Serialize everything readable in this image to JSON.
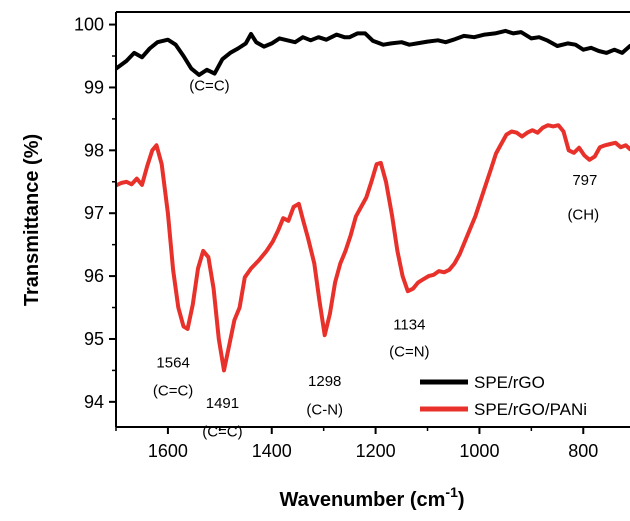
{
  "chart_data": {
    "type": "line",
    "title": "",
    "xlabel": "Wavenumber (cm",
    "xlabel_sup": "-1",
    "xlabel_close": ")",
    "ylabel": "Transmittance (%)",
    "xlim": [
      1700,
      710
    ],
    "ylim": [
      93.6,
      100.2
    ],
    "x_reversed": true,
    "xticks": [
      1600,
      1400,
      1200,
      1000,
      800
    ],
    "yticks": [
      94,
      95,
      96,
      97,
      98,
      99,
      100
    ],
    "grid": false,
    "legend_position": "bottom-right",
    "series": [
      {
        "name": "SPE/rGO",
        "color": "#000000",
        "points": [
          [
            1700,
            99.3
          ],
          [
            1680,
            99.42
          ],
          [
            1665,
            99.55
          ],
          [
            1650,
            99.48
          ],
          [
            1635,
            99.62
          ],
          [
            1620,
            99.72
          ],
          [
            1600,
            99.76
          ],
          [
            1585,
            99.68
          ],
          [
            1570,
            99.5
          ],
          [
            1555,
            99.3
          ],
          [
            1540,
            99.2
          ],
          [
            1525,
            99.28
          ],
          [
            1510,
            99.22
          ],
          [
            1495,
            99.45
          ],
          [
            1480,
            99.55
          ],
          [
            1465,
            99.62
          ],
          [
            1450,
            99.7
          ],
          [
            1440,
            99.85
          ],
          [
            1430,
            99.72
          ],
          [
            1415,
            99.65
          ],
          [
            1400,
            99.7
          ],
          [
            1385,
            99.78
          ],
          [
            1370,
            99.75
          ],
          [
            1355,
            99.72
          ],
          [
            1340,
            99.8
          ],
          [
            1325,
            99.75
          ],
          [
            1310,
            99.8
          ],
          [
            1295,
            99.76
          ],
          [
            1275,
            99.84
          ],
          [
            1260,
            99.8
          ],
          [
            1250,
            99.8
          ],
          [
            1235,
            99.86
          ],
          [
            1220,
            99.86
          ],
          [
            1205,
            99.74
          ],
          [
            1185,
            99.68
          ],
          [
            1170,
            99.7
          ],
          [
            1150,
            99.72
          ],
          [
            1135,
            99.68
          ],
          [
            1120,
            99.7
          ],
          [
            1100,
            99.73
          ],
          [
            1080,
            99.75
          ],
          [
            1065,
            99.72
          ],
          [
            1050,
            99.76
          ],
          [
            1030,
            99.82
          ],
          [
            1010,
            99.8
          ],
          [
            990,
            99.84
          ],
          [
            970,
            99.86
          ],
          [
            950,
            99.9
          ],
          [
            935,
            99.86
          ],
          [
            920,
            99.88
          ],
          [
            900,
            99.78
          ],
          [
            885,
            99.8
          ],
          [
            870,
            99.75
          ],
          [
            850,
            99.66
          ],
          [
            830,
            99.7
          ],
          [
            815,
            99.68
          ],
          [
            800,
            99.6
          ],
          [
            785,
            99.63
          ],
          [
            770,
            99.58
          ],
          [
            755,
            99.55
          ],
          [
            740,
            99.6
          ],
          [
            725,
            99.55
          ],
          [
            710,
            99.66
          ]
        ]
      },
      {
        "name": "SPE/rGO/PANi",
        "color": "#e8312a",
        "points": [
          [
            1700,
            97.44
          ],
          [
            1690,
            97.48
          ],
          [
            1680,
            97.5
          ],
          [
            1670,
            97.46
          ],
          [
            1660,
            97.55
          ],
          [
            1650,
            97.45
          ],
          [
            1640,
            97.75
          ],
          [
            1630,
            98.0
          ],
          [
            1622,
            98.08
          ],
          [
            1612,
            97.78
          ],
          [
            1600,
            97.0
          ],
          [
            1590,
            96.1
          ],
          [
            1580,
            95.5
          ],
          [
            1570,
            95.2
          ],
          [
            1562,
            95.16
          ],
          [
            1552,
            95.55
          ],
          [
            1542,
            96.12
          ],
          [
            1532,
            96.4
          ],
          [
            1522,
            96.3
          ],
          [
            1512,
            95.8
          ],
          [
            1502,
            95.0
          ],
          [
            1492,
            94.5
          ],
          [
            1482,
            94.9
          ],
          [
            1472,
            95.3
          ],
          [
            1462,
            95.5
          ],
          [
            1452,
            95.98
          ],
          [
            1440,
            96.12
          ],
          [
            1425,
            96.25
          ],
          [
            1410,
            96.4
          ],
          [
            1398,
            96.55
          ],
          [
            1388,
            96.72
          ],
          [
            1378,
            96.92
          ],
          [
            1368,
            96.88
          ],
          [
            1358,
            97.1
          ],
          [
            1348,
            97.15
          ],
          [
            1340,
            96.9
          ],
          [
            1330,
            96.6
          ],
          [
            1318,
            96.2
          ],
          [
            1308,
            95.6
          ],
          [
            1298,
            95.06
          ],
          [
            1288,
            95.4
          ],
          [
            1278,
            95.9
          ],
          [
            1268,
            96.2
          ],
          [
            1258,
            96.4
          ],
          [
            1248,
            96.65
          ],
          [
            1238,
            96.95
          ],
          [
            1228,
            97.1
          ],
          [
            1218,
            97.25
          ],
          [
            1208,
            97.5
          ],
          [
            1198,
            97.78
          ],
          [
            1190,
            97.8
          ],
          [
            1180,
            97.5
          ],
          [
            1168,
            96.95
          ],
          [
            1158,
            96.4
          ],
          [
            1148,
            96.0
          ],
          [
            1138,
            95.76
          ],
          [
            1128,
            95.8
          ],
          [
            1118,
            95.9
          ],
          [
            1108,
            95.95
          ],
          [
            1098,
            96.0
          ],
          [
            1088,
            96.02
          ],
          [
            1078,
            96.08
          ],
          [
            1068,
            96.06
          ],
          [
            1058,
            96.1
          ],
          [
            1048,
            96.2
          ],
          [
            1038,
            96.35
          ],
          [
            1028,
            96.55
          ],
          [
            1018,
            96.75
          ],
          [
            1008,
            96.95
          ],
          [
            998,
            97.2
          ],
          [
            988,
            97.45
          ],
          [
            978,
            97.7
          ],
          [
            968,
            97.95
          ],
          [
            958,
            98.1
          ],
          [
            948,
            98.25
          ],
          [
            938,
            98.3
          ],
          [
            928,
            98.28
          ],
          [
            918,
            98.22
          ],
          [
            908,
            98.28
          ],
          [
            898,
            98.32
          ],
          [
            888,
            98.28
          ],
          [
            878,
            98.36
          ],
          [
            868,
            98.4
          ],
          [
            858,
            98.38
          ],
          [
            848,
            98.4
          ],
          [
            838,
            98.3
          ],
          [
            828,
            98.0
          ],
          [
            818,
            97.96
          ],
          [
            808,
            98.04
          ],
          [
            798,
            97.92
          ],
          [
            788,
            97.85
          ],
          [
            778,
            97.9
          ],
          [
            768,
            98.05
          ],
          [
            758,
            98.08
          ],
          [
            748,
            98.1
          ],
          [
            738,
            98.12
          ],
          [
            728,
            98.05
          ],
          [
            718,
            98.08
          ],
          [
            710,
            98.02
          ]
        ]
      }
    ],
    "annotations": [
      {
        "text": "(C=C)",
        "x": 1520,
        "y": 98.95
      },
      {
        "text": "1564",
        "x": 1590,
        "y": 94.55
      },
      {
        "text": "(C=C)",
        "x": 1590,
        "y": 94.1
      },
      {
        "text": "1491",
        "x": 1495,
        "y": 93.9
      },
      {
        "text": "(C=C)",
        "x": 1495,
        "y": 93.45
      },
      {
        "text": "1298",
        "x": 1298,
        "y": 94.25
      },
      {
        "text": "(C-N)",
        "x": 1298,
        "y": 93.8
      },
      {
        "text": "1134",
        "x": 1135,
        "y": 95.15
      },
      {
        "text": "(C=N)",
        "x": 1135,
        "y": 94.72
      },
      {
        "text": "797",
        "x": 797,
        "y": 97.45
      },
      {
        "text": "(CH)",
        "x": 800,
        "y": 96.9
      }
    ]
  }
}
